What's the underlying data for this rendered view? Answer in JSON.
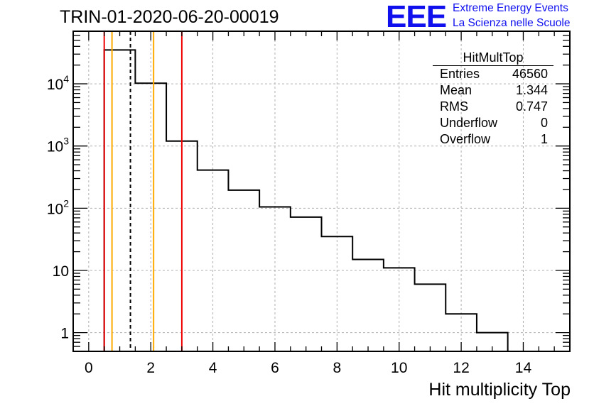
{
  "title": "TRIN-01-2020-06-20-00019",
  "logo": {
    "mark": "EEE",
    "line1": "Extreme Energy Events",
    "line2": "La Scienza nelle Scuole",
    "color": "#1010ee"
  },
  "stats_box": {
    "name": "HitMultTop",
    "rows": [
      {
        "label": "Entries",
        "value": "46560"
      },
      {
        "label": "Mean",
        "value": "1.344"
      },
      {
        "label": "RMS",
        "value": "0.747"
      },
      {
        "label": "Underflow",
        "value": "0"
      },
      {
        "label": "Overflow",
        "value": "1"
      }
    ]
  },
  "chart_data": {
    "type": "bar",
    "style": "step-histogram",
    "xlabel": "Hit multiplicity Top",
    "ylabel": "",
    "yscale": "log",
    "xlim": [
      -0.5,
      15.5
    ],
    "ylim": [
      0.5,
      70000
    ],
    "grid": true,
    "x_ticks": [
      "0",
      "2",
      "4",
      "6",
      "8",
      "10",
      "12",
      "14"
    ],
    "y_ticks": [
      {
        "value": 1,
        "label": "1"
      },
      {
        "value": 10,
        "label": "10"
      },
      {
        "value": 100,
        "label": "10^2"
      },
      {
        "value": 1000,
        "label": "10^3"
      },
      {
        "value": 10000,
        "label": "10^4"
      }
    ],
    "bin_edges": [
      0.5,
      1.5,
      2.5,
      3.5,
      4.5,
      5.5,
      6.5,
      7.5,
      8.5,
      9.5,
      10.5,
      11.5,
      12.5,
      13.5
    ],
    "counts": [
      35000,
      10200,
      1200,
      410,
      195,
      105,
      72,
      35,
      15,
      11,
      6,
      2,
      1
    ],
    "reference_lines": [
      {
        "x": 0.5,
        "color": "#ee0000",
        "style": "solid"
      },
      {
        "x": 0.75,
        "color": "#ffaa00",
        "style": "solid"
      },
      {
        "x": 1.344,
        "color": "#000000",
        "style": "dashed"
      },
      {
        "x": 2.09,
        "color": "#ffaa00",
        "style": "solid"
      },
      {
        "x": 3.0,
        "color": "#ee0000",
        "style": "solid"
      }
    ],
    "colors": {
      "histogram": "#000000",
      "grid": "#b0b0b0"
    }
  }
}
